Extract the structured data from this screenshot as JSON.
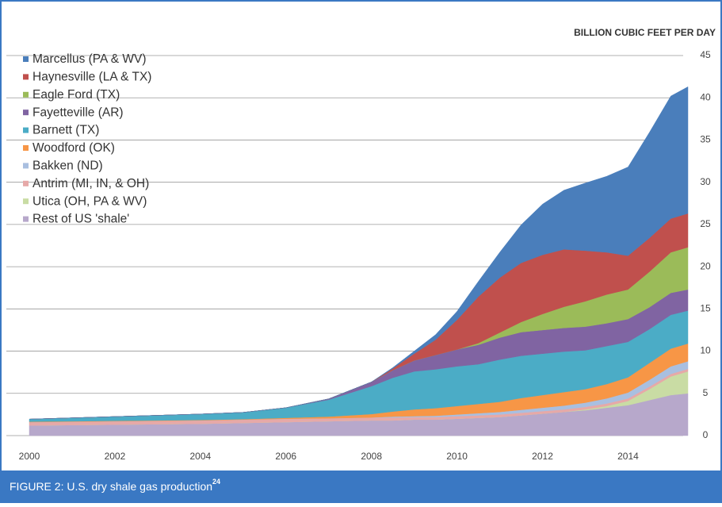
{
  "chart_data": {
    "type": "stacked_area",
    "unit_label": "BILLION CUBIC FEET PER DAY",
    "caption": {
      "label": "FIGURE 2",
      "text": ": U.S. dry shale gas production",
      "note": "24"
    },
    "x": [
      2000,
      2001,
      2002,
      2003,
      2004,
      2005,
      2006,
      2007,
      2008,
      2008.5,
      2009,
      2009.5,
      2010,
      2010.5,
      2011,
      2011.5,
      2012,
      2012.5,
      2013,
      2013.5,
      2014,
      2014.5,
      2015,
      2015.4
    ],
    "series": [
      {
        "name": "Marcellus (PA & WV)",
        "color": "#4a7ebb",
        "values": [
          0,
          0,
          0,
          0,
          0,
          0,
          0,
          0,
          0,
          0.1,
          0.3,
          0.6,
          1.0,
          1.8,
          3.0,
          4.5,
          6.0,
          7.0,
          8.0,
          9.0,
          10.5,
          12.5,
          14.5,
          15.0
        ]
      },
      {
        "name": "Haynesville (LA & TX)",
        "color": "#c0504d",
        "values": [
          0,
          0,
          0,
          0,
          0,
          0,
          0,
          0,
          0,
          0.2,
          0.8,
          1.8,
          3.5,
          5.5,
          6.5,
          7.0,
          7.0,
          6.8,
          6.0,
          5.0,
          4.0,
          4.0,
          4.0,
          4.0
        ]
      },
      {
        "name": "Eagle Ford (TX)",
        "color": "#9bbb59",
        "values": [
          0,
          0,
          0,
          0,
          0,
          0,
          0,
          0,
          0,
          0,
          0,
          0,
          0,
          0.2,
          0.6,
          1.2,
          1.9,
          2.5,
          3.0,
          3.4,
          3.5,
          4.2,
          4.8,
          5.0
        ]
      },
      {
        "name": "Fayetteville (AR)",
        "color": "#8064a2",
        "values": [
          0,
          0,
          0,
          0,
          0,
          0,
          0,
          0.1,
          0.5,
          0.9,
          1.3,
          1.7,
          2.0,
          2.3,
          2.6,
          2.8,
          2.8,
          2.8,
          2.8,
          2.7,
          2.7,
          2.6,
          2.6,
          2.5
        ]
      },
      {
        "name": "Barnett (TX)",
        "color": "#4bacc6",
        "values": [
          0.3,
          0.4,
          0.5,
          0.6,
          0.7,
          0.8,
          1.2,
          2.0,
          3.3,
          4.0,
          4.5,
          4.6,
          4.7,
          4.7,
          5.0,
          5.0,
          4.9,
          4.8,
          4.6,
          4.5,
          4.2,
          4.0,
          4.0,
          3.9
        ]
      },
      {
        "name": "Woodford (OK)",
        "color": "#f79646",
        "values": [
          0.05,
          0.05,
          0.05,
          0.05,
          0.05,
          0.05,
          0.1,
          0.2,
          0.4,
          0.6,
          0.8,
          0.9,
          1.0,
          1.1,
          1.2,
          1.4,
          1.5,
          1.6,
          1.6,
          1.7,
          1.8,
          2.0,
          2.1,
          2.1
        ]
      },
      {
        "name": "Bakken (ND)",
        "color": "#a9bfe0",
        "values": [
          0,
          0,
          0,
          0,
          0,
          0,
          0,
          0,
          0,
          0.1,
          0.1,
          0.15,
          0.2,
          0.25,
          0.3,
          0.35,
          0.4,
          0.45,
          0.5,
          0.6,
          0.7,
          0.8,
          0.9,
          0.9
        ]
      },
      {
        "name": "Antrim (MI, IN, & OH)",
        "color": "#e6a9a8",
        "values": [
          0.4,
          0.4,
          0.4,
          0.4,
          0.4,
          0.4,
          0.4,
          0.35,
          0.35,
          0.35,
          0.3,
          0.3,
          0.3,
          0.3,
          0.3,
          0.3,
          0.3,
          0.3,
          0.3,
          0.3,
          0.3,
          0.3,
          0.3,
          0.3
        ]
      },
      {
        "name": "Utica (OH, PA & WV)",
        "color": "#c9dca4",
        "values": [
          0,
          0,
          0,
          0,
          0,
          0,
          0,
          0,
          0,
          0,
          0,
          0,
          0,
          0,
          0,
          0,
          0,
          0,
          0.1,
          0.2,
          0.5,
          1.3,
          2.2,
          2.6
        ]
      },
      {
        "name": "Rest of US 'shale'",
        "color": "#b7a8cb",
        "values": [
          1.2,
          1.25,
          1.3,
          1.35,
          1.4,
          1.5,
          1.6,
          1.7,
          1.8,
          1.8,
          1.9,
          1.9,
          2.0,
          2.1,
          2.2,
          2.4,
          2.6,
          2.8,
          3.0,
          3.3,
          3.6,
          4.2,
          4.8,
          5.0
        ]
      }
    ],
    "xlim": [
      2000,
      2015.4
    ],
    "xticks": [
      2000,
      2002,
      2004,
      2006,
      2008,
      2010,
      2012,
      2014
    ],
    "ylim": [
      0,
      45
    ],
    "yticks": [
      0,
      5,
      10,
      15,
      20,
      25,
      30,
      35,
      40,
      45
    ],
    "grid": true,
    "legend": "upper left",
    "frame_color": "#3a78c3"
  }
}
